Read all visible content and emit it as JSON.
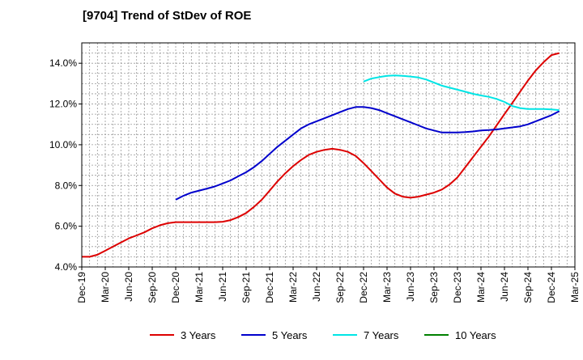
{
  "chart_data": {
    "type": "line",
    "title": "[9704]  Trend of StDev of ROE",
    "xlabel": "",
    "ylabel": "",
    "x_ticks": [
      "Dec-19",
      "Mar-20",
      "Jun-20",
      "Sep-20",
      "Dec-20",
      "Mar-21",
      "Jun-21",
      "Sep-21",
      "Dec-21",
      "Mar-22",
      "Jun-22",
      "Sep-22",
      "Dec-22",
      "Mar-23",
      "Jun-23",
      "Sep-23",
      "Dec-23",
      "Mar-24",
      "Jun-24",
      "Sep-24",
      "Dec-24",
      "Mar-25"
    ],
    "y_ticks": [
      "4.0%",
      "6.0%",
      "8.0%",
      "10.0%",
      "12.0%",
      "14.0%"
    ],
    "ylim": [
      4.0,
      15.0
    ],
    "grid": true,
    "legend_position": "bottom",
    "series": [
      {
        "name": "3 Years",
        "color": "#dd0000",
        "values": [
          [
            "Dec-19",
            4.5
          ],
          [
            "Jan-20",
            4.5
          ],
          [
            "Feb-20",
            4.6
          ],
          [
            "Mar-20",
            4.8
          ],
          [
            "Apr-20",
            5.0
          ],
          [
            "May-20",
            5.2
          ],
          [
            "Jun-20",
            5.4
          ],
          [
            "Jul-20",
            5.55
          ],
          [
            "Aug-20",
            5.7
          ],
          [
            "Sep-20",
            5.9
          ],
          [
            "Oct-20",
            6.05
          ],
          [
            "Nov-20",
            6.15
          ],
          [
            "Dec-20",
            6.2
          ],
          [
            "Jan-21",
            6.2
          ],
          [
            "Feb-21",
            6.2
          ],
          [
            "Mar-21",
            6.2
          ],
          [
            "Apr-21",
            6.2
          ],
          [
            "May-21",
            6.2
          ],
          [
            "Jun-21",
            6.22
          ],
          [
            "Jul-21",
            6.3
          ],
          [
            "Aug-21",
            6.45
          ],
          [
            "Sep-21",
            6.65
          ],
          [
            "Oct-21",
            6.95
          ],
          [
            "Nov-21",
            7.3
          ],
          [
            "Dec-21",
            7.75
          ],
          [
            "Jan-22",
            8.2
          ],
          [
            "Feb-22",
            8.6
          ],
          [
            "Mar-22",
            8.95
          ],
          [
            "Apr-22",
            9.25
          ],
          [
            "May-22",
            9.5
          ],
          [
            "Jun-22",
            9.65
          ],
          [
            "Jul-22",
            9.75
          ],
          [
            "Aug-22",
            9.8
          ],
          [
            "Sep-22",
            9.75
          ],
          [
            "Oct-22",
            9.65
          ],
          [
            "Nov-22",
            9.45
          ],
          [
            "Dec-22",
            9.1
          ],
          [
            "Jan-23",
            8.7
          ],
          [
            "Feb-23",
            8.3
          ],
          [
            "Mar-23",
            7.9
          ],
          [
            "Apr-23",
            7.6
          ],
          [
            "May-23",
            7.45
          ],
          [
            "Jun-23",
            7.4
          ],
          [
            "Jul-23",
            7.45
          ],
          [
            "Aug-23",
            7.55
          ],
          [
            "Sep-23",
            7.65
          ],
          [
            "Oct-23",
            7.8
          ],
          [
            "Nov-23",
            8.05
          ],
          [
            "Dec-23",
            8.4
          ],
          [
            "Jan-24",
            8.9
          ],
          [
            "Feb-24",
            9.4
          ],
          [
            "Mar-24",
            9.9
          ],
          [
            "Apr-24",
            10.4
          ],
          [
            "May-24",
            10.95
          ],
          [
            "Jun-24",
            11.5
          ],
          [
            "Jul-24",
            12.05
          ],
          [
            "Aug-24",
            12.6
          ],
          [
            "Sep-24",
            13.15
          ],
          [
            "Oct-24",
            13.65
          ],
          [
            "Nov-24",
            14.05
          ],
          [
            "Dec-24",
            14.4
          ],
          [
            "Jan-25",
            14.5
          ]
        ]
      },
      {
        "name": "5 Years",
        "color": "#0000cc",
        "values": [
          [
            "Dec-20",
            7.3
          ],
          [
            "Jan-21",
            7.5
          ],
          [
            "Feb-21",
            7.65
          ],
          [
            "Mar-21",
            7.75
          ],
          [
            "Apr-21",
            7.85
          ],
          [
            "May-21",
            7.95
          ],
          [
            "Jun-21",
            8.1
          ],
          [
            "Jul-21",
            8.25
          ],
          [
            "Aug-21",
            8.45
          ],
          [
            "Sep-21",
            8.65
          ],
          [
            "Oct-21",
            8.9
          ],
          [
            "Nov-21",
            9.2
          ],
          [
            "Dec-21",
            9.55
          ],
          [
            "Jan-22",
            9.9
          ],
          [
            "Feb-22",
            10.2
          ],
          [
            "Mar-22",
            10.5
          ],
          [
            "Apr-22",
            10.8
          ],
          [
            "May-22",
            11.0
          ],
          [
            "Jun-22",
            11.15
          ],
          [
            "Jul-22",
            11.3
          ],
          [
            "Aug-22",
            11.45
          ],
          [
            "Sep-22",
            11.6
          ],
          [
            "Oct-22",
            11.75
          ],
          [
            "Nov-22",
            11.85
          ],
          [
            "Dec-22",
            11.85
          ],
          [
            "Jan-23",
            11.8
          ],
          [
            "Feb-23",
            11.7
          ],
          [
            "Mar-23",
            11.55
          ],
          [
            "Apr-23",
            11.4
          ],
          [
            "May-23",
            11.25
          ],
          [
            "Jun-23",
            11.1
          ],
          [
            "Jul-23",
            10.95
          ],
          [
            "Aug-23",
            10.8
          ],
          [
            "Sep-23",
            10.7
          ],
          [
            "Oct-23",
            10.6
          ],
          [
            "Nov-23",
            10.6
          ],
          [
            "Dec-23",
            10.6
          ],
          [
            "Jan-24",
            10.62
          ],
          [
            "Feb-24",
            10.65
          ],
          [
            "Mar-24",
            10.7
          ],
          [
            "Apr-24",
            10.72
          ],
          [
            "May-24",
            10.75
          ],
          [
            "Jun-24",
            10.8
          ],
          [
            "Jul-24",
            10.85
          ],
          [
            "Aug-24",
            10.9
          ],
          [
            "Sep-24",
            11.0
          ],
          [
            "Oct-24",
            11.15
          ],
          [
            "Nov-24",
            11.3
          ],
          [
            "Dec-24",
            11.45
          ],
          [
            "Jan-25",
            11.65
          ]
        ]
      },
      {
        "name": "7 Years",
        "color": "#00e5e5",
        "values": [
          [
            "Dec-22",
            13.1
          ],
          [
            "Jan-23",
            13.25
          ],
          [
            "Feb-23",
            13.32
          ],
          [
            "Mar-23",
            13.38
          ],
          [
            "Apr-23",
            13.4
          ],
          [
            "May-23",
            13.38
          ],
          [
            "Jun-23",
            13.35
          ],
          [
            "Jul-23",
            13.3
          ],
          [
            "Aug-23",
            13.2
          ],
          [
            "Sep-23",
            13.05
          ],
          [
            "Oct-23",
            12.9
          ],
          [
            "Nov-23",
            12.8
          ],
          [
            "Dec-23",
            12.7
          ],
          [
            "Jan-24",
            12.6
          ],
          [
            "Feb-24",
            12.5
          ],
          [
            "Mar-24",
            12.42
          ],
          [
            "Apr-24",
            12.35
          ],
          [
            "May-24",
            12.25
          ],
          [
            "Jun-24",
            12.1
          ],
          [
            "Jul-24",
            11.9
          ],
          [
            "Aug-24",
            11.8
          ],
          [
            "Sep-24",
            11.75
          ],
          [
            "Oct-24",
            11.75
          ],
          [
            "Nov-24",
            11.75
          ],
          [
            "Dec-24",
            11.73
          ],
          [
            "Jan-25",
            11.7
          ]
        ]
      },
      {
        "name": "10 Years",
        "color": "#008000",
        "values": []
      }
    ]
  }
}
